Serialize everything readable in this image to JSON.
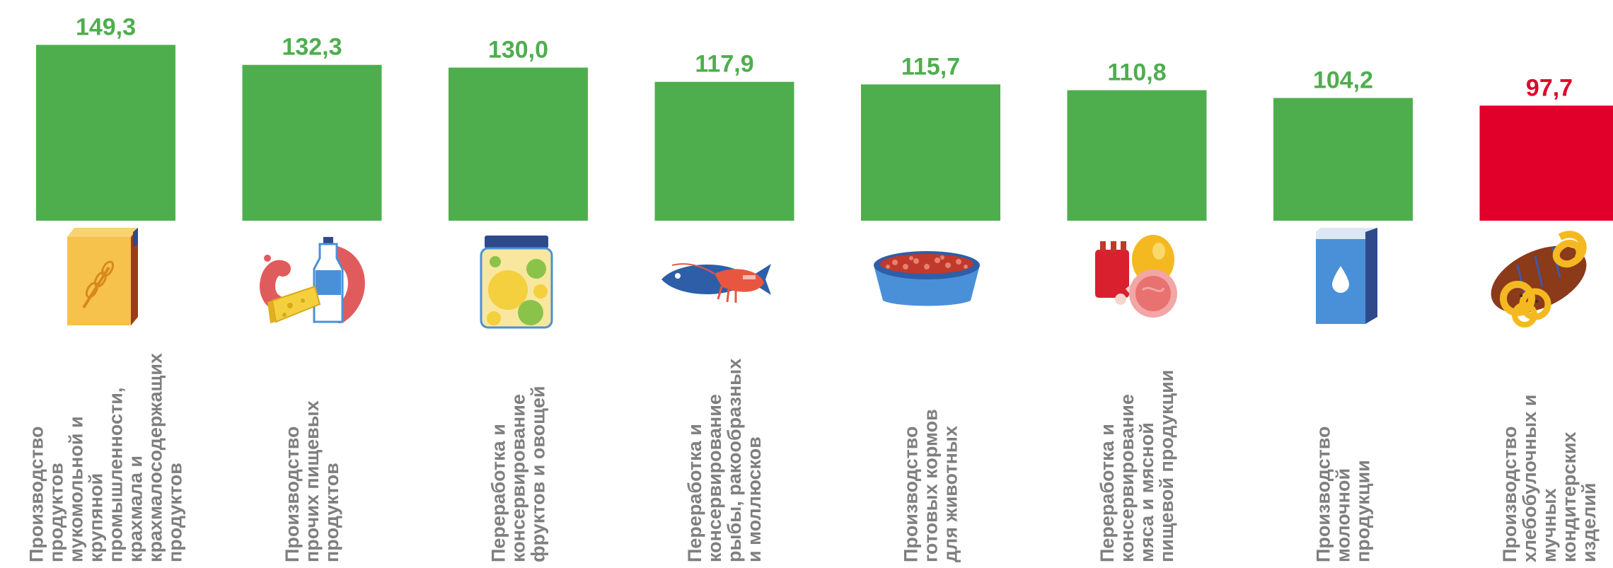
{
  "chart_data": {
    "type": "bar",
    "title": "",
    "xlabel": "",
    "ylabel": "",
    "ylim": [
      0,
      150
    ],
    "grid": false,
    "legend": "none",
    "colors": {
      "above_100": "#4eae4e",
      "below_100": "#e0002a",
      "category_text": "#7f7f7f"
    },
    "value_labels": [
      "149,3",
      "132,3",
      "130,0",
      "117,9",
      "115,7",
      "110,8",
      "104,2",
      "97,7"
    ],
    "values": [
      149.3,
      132.3,
      130.0,
      117.9,
      115.7,
      110.8,
      104.2,
      97.7
    ],
    "categories": [
      {
        "lines": [
          "Производство",
          "продуктов",
          "мукомольной и",
          "крупяной",
          "промышленности,",
          "крахмала и",
          "крахмалосодержащих",
          "продуктов"
        ],
        "icon": "flour-box-icon"
      },
      {
        "lines": [
          "Производство",
          "прочих пищевых",
          "продуктов"
        ],
        "icon": "cheese-milk-sausage-icon"
      },
      {
        "lines": [
          "Переработка и",
          "консервирование",
          "фруктов и овощей"
        ],
        "icon": "preserve-jar-icon"
      },
      {
        "lines": [
          "Переработка и",
          "консервирование",
          "рыбы, ракообразных",
          "и моллюсков"
        ],
        "icon": "fish-shrimp-icon"
      },
      {
        "lines": [
          "Производство",
          "готовых кормов",
          "для животных"
        ],
        "icon": "pet-food-bowl-icon"
      },
      {
        "lines": [
          "Переработка и",
          "консервирование",
          "мяса и мясной",
          "пищевой продукции"
        ],
        "icon": "meat-icon"
      },
      {
        "lines": [
          "Производство",
          "молочной",
          "продукции"
        ],
        "icon": "milk-carton-icon"
      },
      {
        "lines": [
          "Производство",
          "хлебобулочных и",
          "мучных",
          "кондитерских",
          "изделий"
        ],
        "icon": "bread-pretzel-icon"
      }
    ]
  }
}
